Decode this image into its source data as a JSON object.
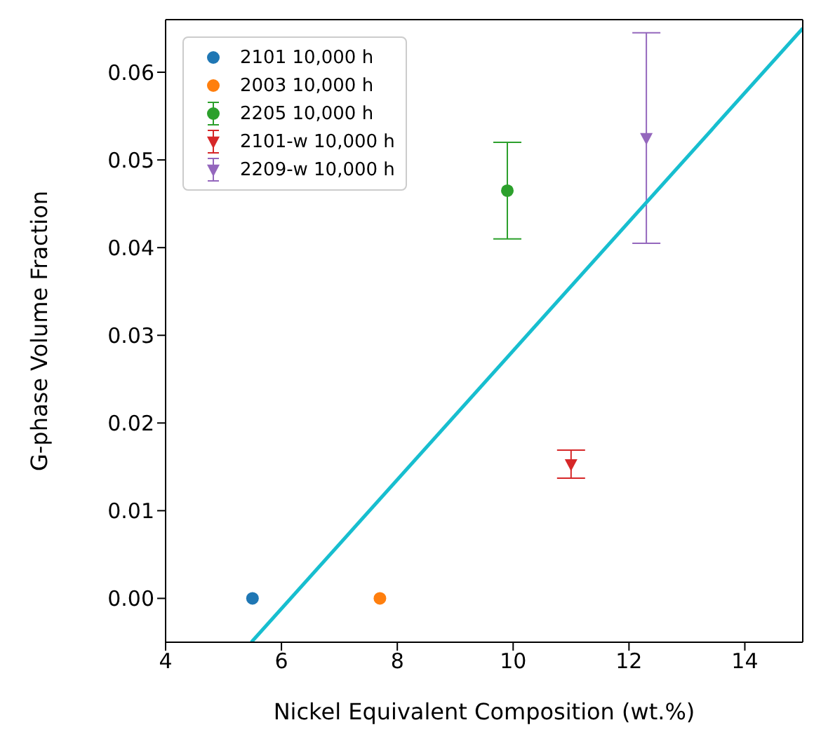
{
  "chart_data": {
    "type": "scatter",
    "xlabel": "Nickel Equivalent Composition (wt.%)",
    "ylabel": "G-phase Volume Fraction",
    "xlim": [
      4,
      15
    ],
    "xticks": [
      4,
      6,
      8,
      10,
      12,
      14
    ],
    "ylim": [
      -0.005,
      0.066
    ],
    "yticks": [
      {
        "value": 0,
        "label": "0.00"
      },
      {
        "value": 0.01,
        "label": "0.01"
      },
      {
        "value": 0.02,
        "label": "0.02"
      },
      {
        "value": 0.03,
        "label": "0.03"
      },
      {
        "value": 0.04,
        "label": "0.04"
      },
      {
        "value": 0.05,
        "label": "0.05"
      },
      {
        "value": 0.06,
        "label": "0.06"
      }
    ],
    "legend": "top left",
    "series": [
      {
        "name": "2101 10,000 h",
        "color": "#1f77b4",
        "marker": "circle",
        "x": [
          5.5
        ],
        "values": [
          0
        ]
      },
      {
        "name": "2003 10,000 h",
        "color": "#ff7f0e",
        "marker": "circle",
        "x": [
          7.7
        ],
        "values": [
          0
        ]
      },
      {
        "name": "2205 10,000 h",
        "color": "#2ca02c",
        "marker": "circle",
        "x": [
          9.9
        ],
        "values": [
          0.0465
        ],
        "errors": [
          [
            0.041,
            0.052
          ]
        ]
      },
      {
        "name": "2101-w 10,000 h",
        "color": "#d62728",
        "marker": "triangle",
        "x": [
          11.0
        ],
        "values": [
          0.0153
        ],
        "errors": [
          [
            0.0137,
            0.0169
          ]
        ]
      },
      {
        "name": "2209-w 10,000 h",
        "color": "#9467bd",
        "marker": "triangle",
        "x": [
          12.3
        ],
        "values": [
          0.0525
        ],
        "errors": [
          [
            0.0405,
            0.0645
          ]
        ]
      },
      {
        "type": "line",
        "color": "#17becf",
        "marker": "none",
        "x": [
          5.48,
          15
        ],
        "values": [
          -0.005,
          0.065
        ]
      }
    ]
  }
}
